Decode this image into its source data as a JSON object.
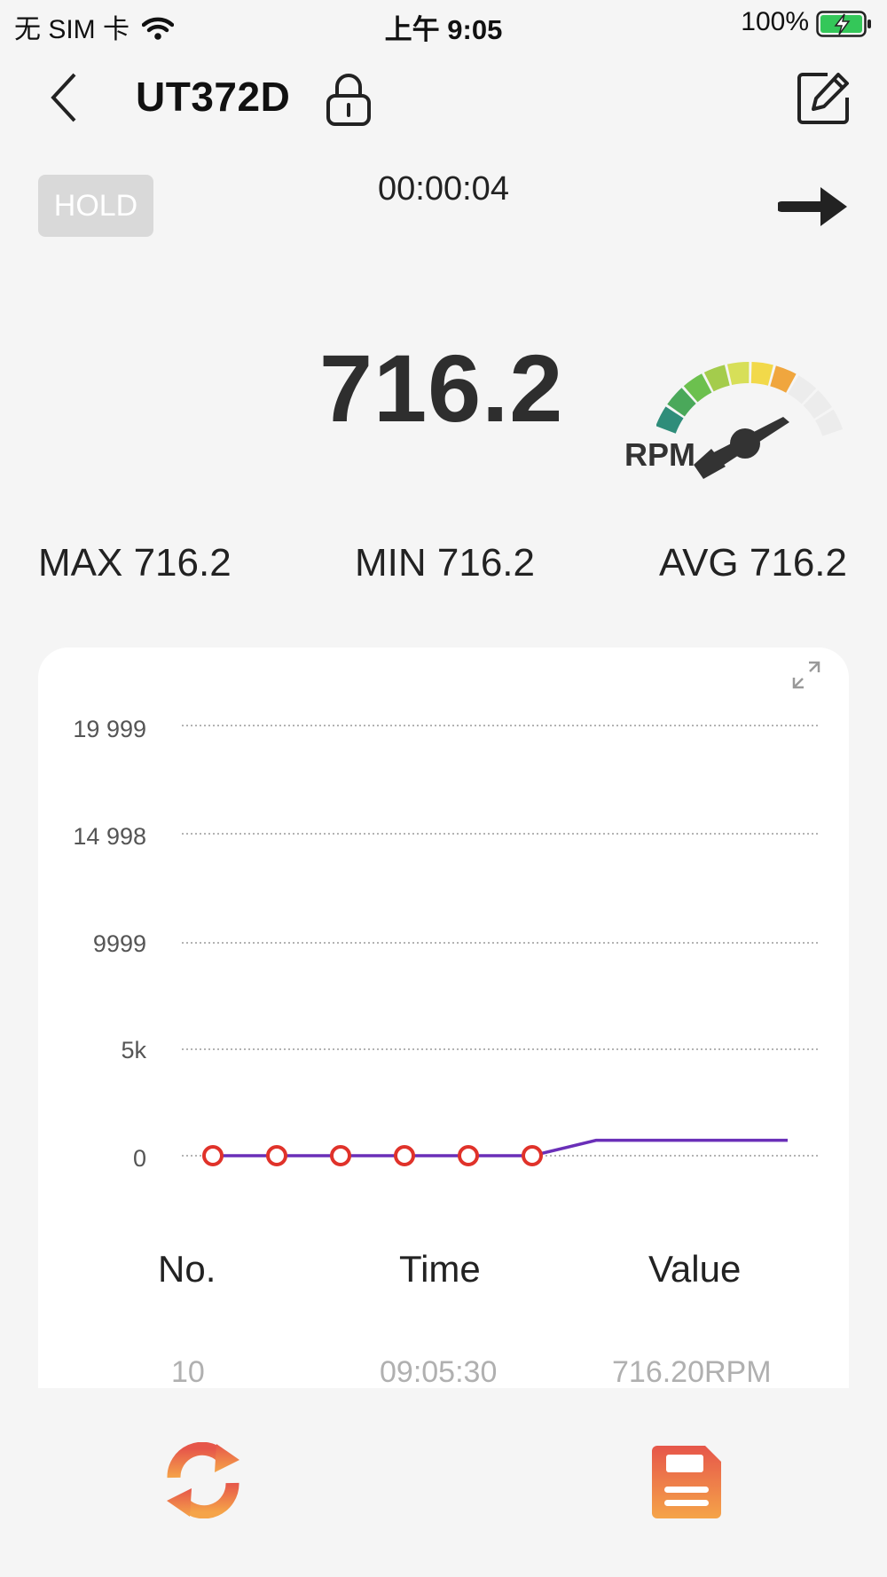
{
  "status_bar": {
    "carrier": "无 SIM 卡",
    "time": "上午 9:05",
    "battery": "100%"
  },
  "header": {
    "title": "UT372D",
    "back_icon": "chevron-left-icon",
    "lock_icon": "lock-icon",
    "edit_icon": "edit-icon"
  },
  "meter": {
    "hold_label": "HOLD",
    "elapsed": "00:00:04",
    "value": "716.2",
    "unit": "RPM",
    "max": "MAX 716.2",
    "min": "MIN 716.2",
    "avg": "AVG 716.2"
  },
  "chart_data": {
    "type": "line",
    "y_ticks": [
      "19 999",
      "14 998",
      "9999",
      "5k",
      "0"
    ],
    "ylim": [
      0,
      19999
    ],
    "grid": true,
    "series": [
      {
        "values": [
          0,
          0,
          0,
          0,
          0,
          0,
          716.2,
          716.2,
          716.2,
          716.2
        ],
        "color": "#6a2fb8",
        "marker_color": "#e0322a"
      }
    ]
  },
  "table": {
    "headers": [
      "No.",
      "Time",
      "Value"
    ],
    "rows": [
      [
        "10",
        "09:05:30",
        "716.20RPM"
      ]
    ]
  },
  "bottom_bar": {
    "refresh_icon": "refresh-icon",
    "save_icon": "save-icon",
    "accent_top": "#e6564a",
    "accent_bottom": "#f5a449"
  }
}
